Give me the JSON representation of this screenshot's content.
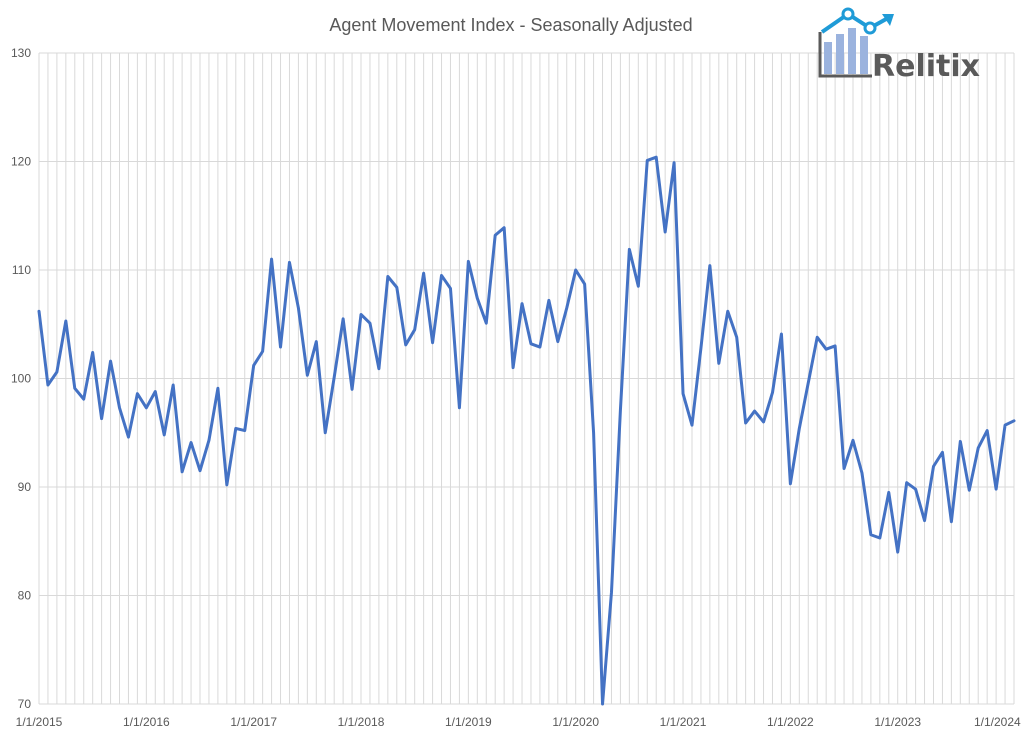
{
  "chart_data": {
    "type": "line",
    "title": "Agent Movement Index - Seasonally Adjusted",
    "xlabel": "",
    "ylabel": "",
    "ylim": [
      70,
      130
    ],
    "yticks": [
      "70",
      "80",
      "90",
      "100",
      "110",
      "120",
      "130"
    ],
    "xlim": [
      "1/1/2015",
      "2/1/2024"
    ],
    "xticks": [
      "1/1/2015",
      "1/1/2016",
      "1/1/2017",
      "1/1/2018",
      "1/1/2019",
      "1/1/2020",
      "1/1/2021",
      "1/1/2022",
      "1/1/2023",
      "1/1/2024"
    ],
    "grid": {
      "horizontal": true,
      "vertical": true,
      "vertical_interval": "monthly"
    },
    "line_color": "#4472C4",
    "series": [
      {
        "start": "1/1/2015",
        "frequency": "monthly",
        "values": [
          106.2,
          99.4,
          100.6,
          105.3,
          99.1,
          98.1,
          102.4,
          96.3,
          101.6,
          97.3,
          94.6,
          98.6,
          97.3,
          98.8,
          94.8,
          99.4,
          91.4,
          94.1,
          91.5,
          94.3,
          99.1,
          90.2,
          95.4,
          95.2,
          101.2,
          102.5,
          111.0,
          102.9,
          110.7,
          106.5,
          100.3,
          103.4,
          95.0,
          100.1,
          105.5,
          99.0,
          105.9,
          105.1,
          100.9,
          109.4,
          108.4,
          103.1,
          104.5,
          109.7,
          103.3,
          109.5,
          108.3,
          97.3,
          110.8,
          107.4,
          105.1,
          113.2,
          113.9,
          101.0,
          106.9,
          103.2,
          102.9,
          107.2,
          103.4,
          106.5,
          110.0,
          108.7,
          95.0,
          70.0,
          80.3,
          97.1,
          111.9,
          108.5,
          120.1,
          120.4,
          113.5,
          119.9,
          98.6,
          95.7,
          102.8,
          110.4,
          101.4,
          106.2,
          103.8,
          95.9,
          97.0,
          96.0,
          98.7,
          104.1,
          90.3,
          95.4,
          99.6,
          103.8,
          102.7,
          103.0,
          91.7,
          94.3,
          91.3,
          85.6,
          85.3,
          89.5,
          84.0,
          90.4,
          89.8,
          86.9,
          91.9,
          93.2,
          86.8,
          94.2,
          89.7,
          93.6,
          95.2,
          89.8,
          95.7,
          96.1
        ]
      }
    ]
  },
  "logo": {
    "text": "Relitix",
    "colors": {
      "bars": "#9bb3de",
      "line": "#1f9bd7",
      "text": "#5a5a5a"
    }
  }
}
